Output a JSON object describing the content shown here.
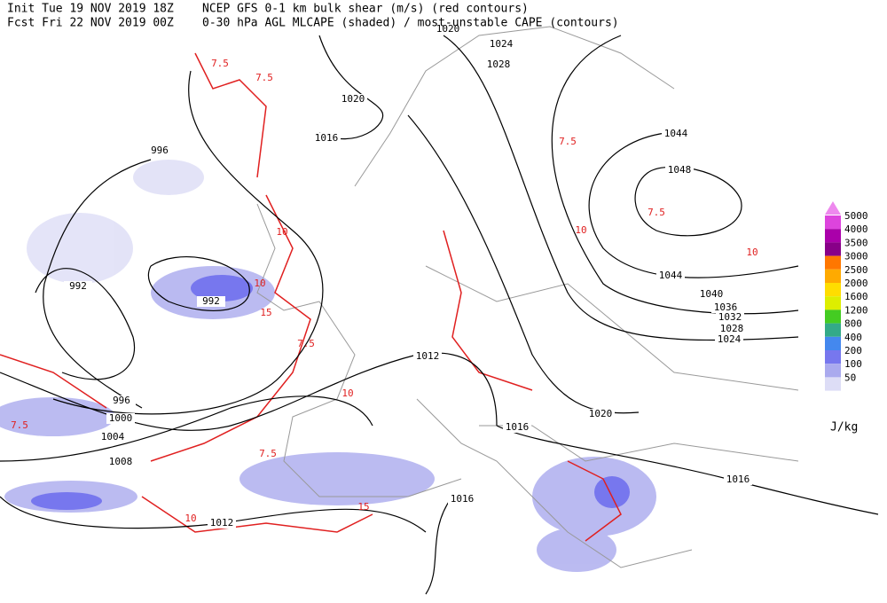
{
  "header": {
    "init": "Init  Tue 19 NOV 2019 18Z",
    "fcst": "Fcst Fri 22 NOV 2019 00Z",
    "line1": "NCEP GFS 0-1 km bulk shear (m/s) (red contours)",
    "line2": "0-30 hPa AGL MLCAPE (shaded) / most-unstable CAPE (contours)"
  },
  "colorbar": {
    "levels": [
      5000,
      4000,
      3500,
      3000,
      2500,
      2000,
      1600,
      1200,
      800,
      400,
      200,
      100,
      50
    ],
    "colors": [
      "#dd44dd",
      "#aa00aa",
      "#880088",
      "#ff7700",
      "#ffaa00",
      "#ffdd00",
      "#ddee00",
      "#44cc22",
      "#33aa88",
      "#4488ee",
      "#7777ee",
      "#aaaaee",
      "#ddddf6"
    ],
    "top_color": "#ee88ee",
    "unit": "J/kg"
  },
  "isobar_labels": [
    1020,
    1016,
    996,
    992,
    992,
    996,
    1000,
    1004,
    1008,
    1012,
    1012,
    1016,
    1016,
    1016,
    1020,
    1024,
    1028,
    1032,
    1036,
    1040,
    1044,
    1044,
    1048,
    1028,
    1024,
    1020
  ],
  "shear_labels": [
    7.5,
    7.5,
    10,
    10,
    15,
    7.5,
    10,
    7.5,
    10,
    15,
    7.5,
    10,
    7.5,
    7.5,
    10
  ]
}
